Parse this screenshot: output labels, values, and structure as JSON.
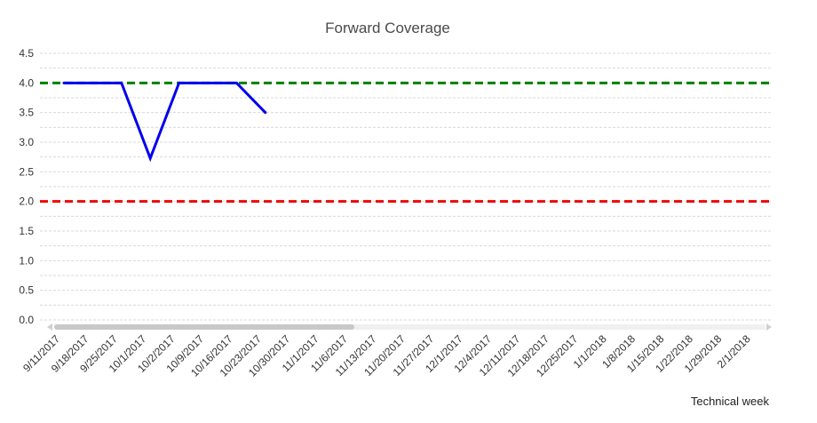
{
  "chart_data": {
    "type": "line",
    "title": "Forward Coverage",
    "xlabel": "Technical week",
    "ylabel": "",
    "ylim": [
      0,
      4.5
    ],
    "yticks": [
      "0.0",
      "0.5",
      "1.0",
      "1.5",
      "2.0",
      "2.5",
      "3.0",
      "3.5",
      "4.0",
      "4.5"
    ],
    "grid": true,
    "categories": [
      "9/11/2017",
      "9/18/2017",
      "9/25/2017",
      "10/1/2017",
      "10/2/2017",
      "10/9/2017",
      "10/16/2017",
      "10/23/2017",
      "10/30/2017",
      "11/1/2017",
      "11/6/2017",
      "11/13/2017",
      "11/20/2017",
      "11/27/2017",
      "12/1/2017",
      "12/4/2017",
      "12/11/2017",
      "12/18/2017",
      "12/25/2017",
      "1/1/2018",
      "1/8/2018",
      "1/15/2018",
      "1/22/2018",
      "1/29/2018",
      "2/1/2018"
    ],
    "series": [
      {
        "color": "#0000ee",
        "values": [
          4.0,
          4.0,
          4.0,
          2.73,
          4.0,
          4.0,
          4.0,
          3.5,
          null,
          null,
          null,
          null,
          null,
          null,
          null,
          null,
          null,
          null,
          null,
          null,
          null,
          null,
          null,
          null,
          null
        ]
      }
    ],
    "reference_lines": [
      {
        "value": 4.0,
        "color": "#008000",
        "style": "dashed"
      },
      {
        "value": 2.0,
        "color": "#ee0000",
        "style": "dashed"
      }
    ],
    "scrollbar": {
      "visible": true
    }
  }
}
